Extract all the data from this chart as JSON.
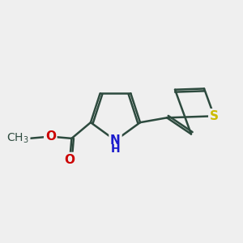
{
  "bg_color": "#efefef",
  "bond_color": "#2d4a3e",
  "bond_width": 1.8,
  "atom_colors": {
    "N": "#1a1acc",
    "O": "#cc0000",
    "S": "#ccbb00",
    "C": "#2d4a3e"
  },
  "font_size": 11,
  "fig_size": [
    3.0,
    3.0
  ],
  "dpi": 100
}
